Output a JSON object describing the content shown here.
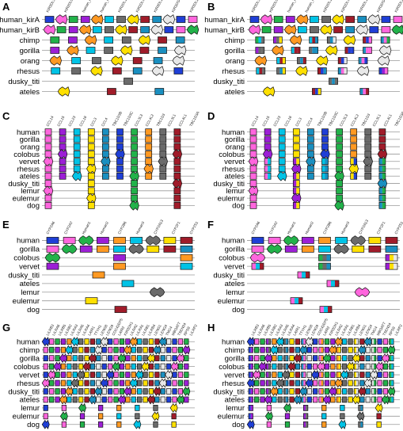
{
  "figure": {
    "panels": [
      {
        "id": "A",
        "species": [
          "human_kirA",
          "human_kirB",
          "chimp",
          "gorilla",
          "orang",
          "rhesus",
          "dusky_titi",
          "ateles"
        ],
        "gene_labels": [
          "KIR3DL3",
          "KIR2DL5",
          "human_kir3",
          "human_kir2DL1",
          "KIR2DL1",
          "KIR2DL4",
          "KIR3DL1",
          "KIR3DS4",
          "KIR3DL2"
        ],
        "pattern": "kir"
      },
      {
        "id": "B",
        "species": [
          "human_kirA",
          "human_kirB",
          "chimp",
          "gorilla",
          "orang",
          "rhesus",
          "dusky_titi",
          "ateles"
        ],
        "gene_labels": [
          "KIR3DL3",
          "KIR2DL5",
          "human_kir3",
          "human_kir2DL1",
          "KIR2DL1",
          "KIR2DL4",
          "KIR3DL1",
          "KIR3DS4",
          "KIR3DL2"
        ],
        "pattern": "kir"
      },
      {
        "id": "C",
        "species": [
          "human",
          "gorilla",
          "orang",
          "colobus",
          "vervet",
          "rhesus",
          "ateles",
          "dusky_titi",
          "lemur",
          "eulemur",
          "dog"
        ],
        "gene_labels": [
          "CCL14",
          "CCL15",
          "CCL23",
          "CCL18",
          "CCL3",
          "CCL4",
          "TBC1D3B",
          "TBC1D3C",
          "CCL3L3",
          "CCL4L2",
          "TBC1D3",
          "CCL3L1",
          "CCL4L1",
          "TBC1D3A"
        ],
        "pattern": "ccl"
      },
      {
        "id": "D",
        "species": [
          "human",
          "gorilla",
          "orang",
          "colobus",
          "vervet",
          "rhesus",
          "ateles",
          "dusky_titi",
          "lemur",
          "eulemur",
          "dog"
        ],
        "gene_labels": [
          "CCL14",
          "CCL15",
          "CCL23",
          "CCL18",
          "CCL3",
          "CCL4",
          "TBC1D3B",
          "TBC1D3C",
          "CCL3L3",
          "CCL4L2",
          "TBC1D3",
          "CCL3L1",
          "CCL4L1",
          "TBC1D3A"
        ],
        "pattern": "ccl"
      },
      {
        "id": "E",
        "species": [
          "human",
          "gorilla",
          "colobus",
          "vervet",
          "dusky_titi",
          "ateles",
          "lemur",
          "eulemur",
          "dog"
        ],
        "gene_labels": [
          "CYP2A6",
          "CYP2A7",
          "Human1",
          "Human2",
          "CYP2B6",
          "Human3",
          "CYP2A13",
          "CYP2F1",
          "CYP2S1"
        ],
        "pattern": "cyp"
      },
      {
        "id": "F",
        "species": [
          "human",
          "gorilla",
          "colobus",
          "vervet",
          "dusky_titi",
          "ateles",
          "lemur",
          "eulemur",
          "dog"
        ],
        "gene_labels": [
          "CYP2A6",
          "CYP2A7",
          "Human1",
          "Human2",
          "CYP2B6",
          "Human3",
          "CYP2A13",
          "CYP2F1",
          "CYP2S1"
        ],
        "pattern": "cyp"
      },
      {
        "id": "G",
        "species": [
          "human",
          "chimp",
          "gorilla",
          "colobus",
          "vervet",
          "rhesus",
          "dusky_titi",
          "ateles",
          "lemur",
          "eulemur",
          "dog"
        ],
        "gene_labels": [
          "LILRB3",
          "LILRA6",
          "LILRB5",
          "LILRB2",
          "LILRA3",
          "LILRA5",
          "LILRA4",
          "LAIR1",
          "TTYH1",
          "LENG8",
          "LENG9",
          "CDC42EP5",
          "LAIR2",
          "KIR3DX1",
          "LILRA2",
          "LILRA1",
          "LILRB1",
          "LILRB4",
          "LENG1",
          "LENG4",
          "TMC4",
          "MBOAT7",
          "TSEN34",
          "RPS9",
          "LILRP2"
        ],
        "pattern": "lilr"
      },
      {
        "id": "H",
        "species": [
          "human",
          "chimp",
          "gorilla",
          "colobus",
          "vervet",
          "rhesus",
          "dusky_titi",
          "ateles",
          "lemur",
          "eulemur",
          "dog"
        ],
        "gene_labels": [
          "LILRB3",
          "LILRA6",
          "LILRB5",
          "LILRB2",
          "LILRA3",
          "LILRA5",
          "LILRA4",
          "LAIR1",
          "TTYH1",
          "LENG8",
          "LENG9",
          "CDC42EP5",
          "LAIR2",
          "KIR3DX1",
          "LILRA2",
          "LILRA1",
          "LILRB1",
          "LILRB4",
          "LENG1",
          "LENG4",
          "TMC4",
          "MBOAT7",
          "TSEN34",
          "RPS9",
          "LILRP2"
        ],
        "pattern": "lilr"
      }
    ],
    "palette": [
      "#1f3fd6",
      "#ff66dd",
      "#22b24a",
      "#9c1fd6",
      "#ff9922",
      "#00c3e6",
      "#6b6b6b",
      "#ffe000",
      "#a01c2a",
      "#1a8fc0",
      "#e8e8e8"
    ]
  }
}
